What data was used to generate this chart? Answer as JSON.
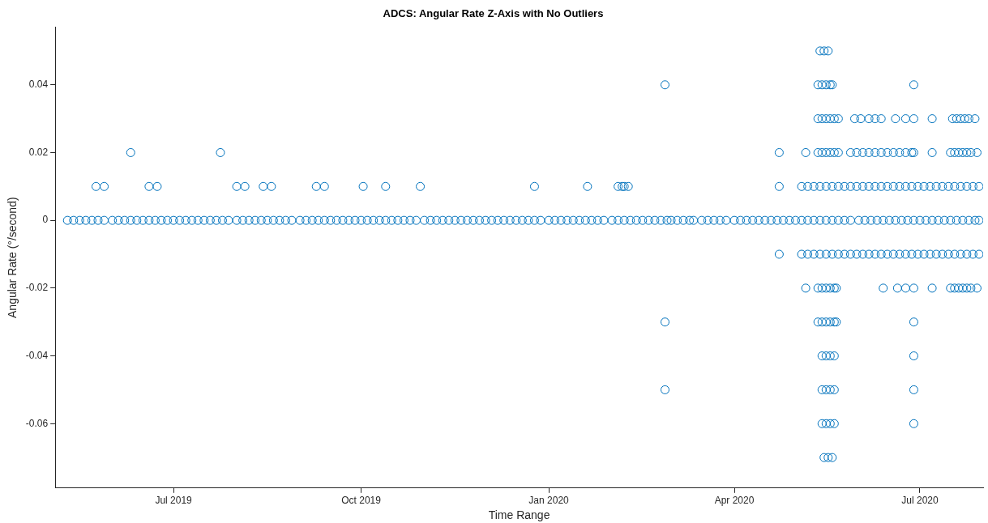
{
  "chart_data": {
    "type": "scatter",
    "title": "ADCS: Angular Rate Z-Axis with No Outliers",
    "xlabel": "Time Range",
    "ylabel": "Angular Rate (°/second)",
    "xlim": [
      "2019-05-04",
      "2020-08-01"
    ],
    "xticks": [
      {
        "value": "2019-07-01",
        "label": "Jul 2019"
      },
      {
        "value": "2019-10-01",
        "label": "Oct 2019"
      },
      {
        "value": "2020-01-01",
        "label": "Jan 2020"
      },
      {
        "value": "2020-04-01",
        "label": "Apr 2020"
      },
      {
        "value": "2020-07-01",
        "label": "Jul 2020"
      }
    ],
    "ylim": [
      -0.079,
      0.057
    ],
    "yticks": [
      -0.06,
      -0.04,
      -0.02,
      0,
      0.02,
      0.04
    ],
    "grid": false,
    "legend": false,
    "marker": "circle",
    "series": [
      {
        "color": "#0072bd",
        "x": [
          "2020-05-13",
          "2020-05-15",
          "2020-05-17"
        ],
        "values": [
          0.05,
          0.05,
          0.05
        ]
      },
      {
        "color": "#0072bd",
        "x": [
          "2020-02-27",
          "2020-05-12",
          "2020-05-14",
          "2020-05-16",
          "2020-05-18",
          "2020-05-19",
          "2020-06-28"
        ],
        "values": [
          0.04,
          0.04,
          0.04,
          0.04,
          0.04,
          0.04,
          0.04
        ]
      },
      {
        "color": "#0072bd",
        "x": [
          "2020-05-12",
          "2020-05-14",
          "2020-05-16",
          "2020-05-18",
          "2020-05-20",
          "2020-05-22",
          "2020-05-30",
          "2020-06-02",
          "2020-06-06",
          "2020-06-09",
          "2020-06-12",
          "2020-06-19",
          "2020-06-24",
          "2020-06-28",
          "2020-07-07",
          "2020-07-17",
          "2020-07-19",
          "2020-07-21",
          "2020-07-23",
          "2020-07-25",
          "2020-07-28"
        ],
        "values": [
          0.03,
          0.03,
          0.03,
          0.03,
          0.03,
          0.03,
          0.03,
          0.03,
          0.03,
          0.03,
          0.03,
          0.03,
          0.03,
          0.03,
          0.03,
          0.03,
          0.03,
          0.03,
          0.03,
          0.03,
          0.03
        ]
      },
      {
        "color": "#0072bd",
        "x": [
          "2019-06-10",
          "2019-07-24",
          "2020-04-23",
          "2020-05-06",
          "2020-05-12",
          "2020-05-14",
          "2020-05-16",
          "2020-05-18",
          "2020-05-20",
          "2020-05-22",
          "2020-05-28",
          "2020-05-31",
          "2020-06-03",
          "2020-06-06",
          "2020-06-09",
          "2020-06-12",
          "2020-06-15",
          "2020-06-18",
          "2020-06-21",
          "2020-06-24",
          "2020-06-27",
          "2020-06-28",
          "2020-07-07",
          "2020-07-16",
          "2020-07-18",
          "2020-07-20",
          "2020-07-22",
          "2020-07-24",
          "2020-07-26",
          "2020-07-29"
        ],
        "values": [
          0.02,
          0.02,
          0.02,
          0.02,
          0.02,
          0.02,
          0.02,
          0.02,
          0.02,
          0.02,
          0.02,
          0.02,
          0.02,
          0.02,
          0.02,
          0.02,
          0.02,
          0.02,
          0.02,
          0.02,
          0.02,
          0.02,
          0.02,
          0.02,
          0.02,
          0.02,
          0.02,
          0.02,
          0.02,
          0.02
        ]
      },
      {
        "color": "#0072bd",
        "x": [
          "2019-05-24",
          "2019-05-28",
          "2019-06-19",
          "2019-06-23",
          "2019-08-01",
          "2019-08-05",
          "2019-08-14",
          "2019-08-18",
          "2019-09-09",
          "2019-09-13",
          "2019-10-02",
          "2019-10-13",
          "2019-10-30",
          "2019-12-25",
          "2020-01-20",
          "2020-02-04",
          "2020-02-06",
          "2020-02-07",
          "2020-02-09",
          "2020-04-23",
          "2020-05-04",
          "2020-05-07",
          "2020-05-10",
          "2020-05-13",
          "2020-05-16",
          "2020-05-19",
          "2020-05-22",
          "2020-05-25",
          "2020-05-28",
          "2020-05-31",
          "2020-06-03",
          "2020-06-06",
          "2020-06-09",
          "2020-06-12",
          "2020-06-15",
          "2020-06-18",
          "2020-06-21",
          "2020-06-24",
          "2020-06-27",
          "2020-06-30",
          "2020-07-03",
          "2020-07-06",
          "2020-07-09",
          "2020-07-12",
          "2020-07-15",
          "2020-07-18",
          "2020-07-21",
          "2020-07-24",
          "2020-07-27",
          "2020-07-30"
        ],
        "values": [
          0.01,
          0.01,
          0.01,
          0.01,
          0.01,
          0.01,
          0.01,
          0.01,
          0.01,
          0.01,
          0.01,
          0.01,
          0.01,
          0.01,
          0.01,
          0.01,
          0.01,
          0.01,
          0.01,
          0.01,
          0.01,
          0.01,
          0.01,
          0.01,
          0.01,
          0.01,
          0.01,
          0.01,
          0.01,
          0.01,
          0.01,
          0.01,
          0.01,
          0.01,
          0.01,
          0.01,
          0.01,
          0.01,
          0.01,
          0.01,
          0.01,
          0.01,
          0.01,
          0.01,
          0.01,
          0.01,
          0.01,
          0.01,
          0.01,
          0.01
        ]
      },
      {
        "color": "#0072bd",
        "x": [
          "2019-05-10",
          "2019-05-13",
          "2019-05-16",
          "2019-05-19",
          "2019-05-22",
          "2019-05-25",
          "2019-05-28",
          "2019-06-01",
          "2019-06-04",
          "2019-06-07",
          "2019-06-10",
          "2019-06-13",
          "2019-06-16",
          "2019-06-19",
          "2019-06-22",
          "2019-06-25",
          "2019-06-28",
          "2019-07-01",
          "2019-07-04",
          "2019-07-07",
          "2019-07-10",
          "2019-07-13",
          "2019-07-16",
          "2019-07-19",
          "2019-07-22",
          "2019-07-25",
          "2019-07-28",
          "2019-08-01",
          "2019-08-04",
          "2019-08-07",
          "2019-08-10",
          "2019-08-13",
          "2019-08-16",
          "2019-08-19",
          "2019-08-22",
          "2019-08-25",
          "2019-08-28",
          "2019-09-01",
          "2019-09-04",
          "2019-09-07",
          "2019-09-10",
          "2019-09-13",
          "2019-09-16",
          "2019-09-19",
          "2019-09-22",
          "2019-09-25",
          "2019-09-28",
          "2019-10-01",
          "2019-10-04",
          "2019-10-07",
          "2019-10-10",
          "2019-10-13",
          "2019-10-16",
          "2019-10-19",
          "2019-10-22",
          "2019-10-25",
          "2019-10-28",
          "2019-11-01",
          "2019-11-04",
          "2019-11-07",
          "2019-11-10",
          "2019-11-13",
          "2019-11-16",
          "2019-11-19",
          "2019-11-22",
          "2019-11-25",
          "2019-11-28",
          "2019-12-01",
          "2019-12-04",
          "2019-12-07",
          "2019-12-10",
          "2019-12-13",
          "2019-12-16",
          "2019-12-19",
          "2019-12-22",
          "2019-12-25",
          "2019-12-28",
          "2020-01-01",
          "2020-01-04",
          "2020-01-07",
          "2020-01-10",
          "2020-01-13",
          "2020-01-16",
          "2020-01-19",
          "2020-01-22",
          "2020-01-25",
          "2020-01-28",
          "2020-02-01",
          "2020-02-04",
          "2020-02-07",
          "2020-02-10",
          "2020-02-13",
          "2020-02-16",
          "2020-02-19",
          "2020-02-22",
          "2020-02-25",
          "2020-02-28",
          "2020-03-01",
          "2020-03-04",
          "2020-03-07",
          "2020-03-10",
          "2020-03-12",
          "2020-03-16",
          "2020-03-19",
          "2020-03-22",
          "2020-03-25",
          "2020-03-28",
          "2020-04-01",
          "2020-04-04",
          "2020-04-07",
          "2020-04-10",
          "2020-04-13",
          "2020-04-16",
          "2020-04-19",
          "2020-04-22",
          "2020-04-25",
          "2020-04-28",
          "2020-05-01",
          "2020-05-04",
          "2020-05-07",
          "2020-05-10",
          "2020-05-13",
          "2020-05-16",
          "2020-05-19",
          "2020-05-22",
          "2020-05-25",
          "2020-05-28",
          "2020-06-01",
          "2020-06-04",
          "2020-06-07",
          "2020-06-10",
          "2020-06-13",
          "2020-06-16",
          "2020-06-19",
          "2020-06-22",
          "2020-06-25",
          "2020-06-28",
          "2020-07-01",
          "2020-07-04",
          "2020-07-07",
          "2020-07-10",
          "2020-07-13",
          "2020-07-16",
          "2020-07-19",
          "2020-07-22",
          "2020-07-25",
          "2020-07-28",
          "2020-07-30"
        ],
        "values": [
          0,
          0,
          0,
          0,
          0,
          0,
          0,
          0,
          0,
          0,
          0,
          0,
          0,
          0,
          0,
          0,
          0,
          0,
          0,
          0,
          0,
          0,
          0,
          0,
          0,
          0,
          0,
          0,
          0,
          0,
          0,
          0,
          0,
          0,
          0,
          0,
          0,
          0,
          0,
          0,
          0,
          0,
          0,
          0,
          0,
          0,
          0,
          0,
          0,
          0,
          0,
          0,
          0,
          0,
          0,
          0,
          0,
          0,
          0,
          0,
          0,
          0,
          0,
          0,
          0,
          0,
          0,
          0,
          0,
          0,
          0,
          0,
          0,
          0,
          0,
          0,
          0,
          0,
          0,
          0,
          0,
          0,
          0,
          0,
          0,
          0,
          0,
          0,
          0,
          0,
          0,
          0,
          0,
          0,
          0,
          0,
          0,
          0,
          0,
          0,
          0,
          0,
          0,
          0,
          0,
          0,
          0,
          0,
          0,
          0,
          0,
          0,
          0,
          0,
          0,
          0,
          0,
          0,
          0,
          0,
          0,
          0,
          0,
          0,
          0,
          0,
          0,
          0,
          0,
          0,
          0,
          0,
          0,
          0,
          0,
          0,
          0,
          0,
          0,
          0,
          0,
          0,
          0,
          0,
          0,
          0,
          0,
          0
        ]
      },
      {
        "color": "#0072bd",
        "x": [
          "2020-04-23",
          "2020-05-04",
          "2020-05-07",
          "2020-05-10",
          "2020-05-13",
          "2020-05-16",
          "2020-05-19",
          "2020-05-22",
          "2020-05-25",
          "2020-05-28",
          "2020-05-31",
          "2020-06-03",
          "2020-06-06",
          "2020-06-09",
          "2020-06-12",
          "2020-06-15",
          "2020-06-18",
          "2020-06-21",
          "2020-06-24",
          "2020-06-27",
          "2020-06-30",
          "2020-07-03",
          "2020-07-06",
          "2020-07-09",
          "2020-07-12",
          "2020-07-15",
          "2020-07-18",
          "2020-07-21",
          "2020-07-24",
          "2020-07-27",
          "2020-07-30"
        ],
        "values": [
          -0.01,
          -0.01,
          -0.01,
          -0.01,
          -0.01,
          -0.01,
          -0.01,
          -0.01,
          -0.01,
          -0.01,
          -0.01,
          -0.01,
          -0.01,
          -0.01,
          -0.01,
          -0.01,
          -0.01,
          -0.01,
          -0.01,
          -0.01,
          -0.01,
          -0.01,
          -0.01,
          -0.01,
          -0.01,
          -0.01,
          -0.01,
          -0.01,
          -0.01,
          -0.01,
          -0.01
        ]
      },
      {
        "color": "#0072bd",
        "x": [
          "2020-05-06",
          "2020-05-12",
          "2020-05-14",
          "2020-05-16",
          "2020-05-18",
          "2020-05-20",
          "2020-05-21",
          "2020-06-13",
          "2020-06-20",
          "2020-06-24",
          "2020-06-28",
          "2020-07-07",
          "2020-07-16",
          "2020-07-18",
          "2020-07-20",
          "2020-07-22",
          "2020-07-24",
          "2020-07-26",
          "2020-07-29"
        ],
        "values": [
          -0.02,
          -0.02,
          -0.02,
          -0.02,
          -0.02,
          -0.02,
          -0.02,
          -0.02,
          -0.02,
          -0.02,
          -0.02,
          -0.02,
          -0.02,
          -0.02,
          -0.02,
          -0.02,
          -0.02,
          -0.02,
          -0.02
        ]
      },
      {
        "color": "#0072bd",
        "x": [
          "2020-02-27",
          "2020-05-12",
          "2020-05-14",
          "2020-05-16",
          "2020-05-18",
          "2020-05-20",
          "2020-05-21",
          "2020-06-28"
        ],
        "values": [
          -0.03,
          -0.03,
          -0.03,
          -0.03,
          -0.03,
          -0.03,
          -0.03,
          -0.03
        ]
      },
      {
        "color": "#0072bd",
        "x": [
          "2020-05-14",
          "2020-05-16",
          "2020-05-18",
          "2020-05-20",
          "2020-06-28"
        ],
        "values": [
          -0.04,
          -0.04,
          -0.04,
          -0.04,
          -0.04
        ]
      },
      {
        "color": "#0072bd",
        "x": [
          "2020-02-27",
          "2020-05-14",
          "2020-05-16",
          "2020-05-18",
          "2020-05-20",
          "2020-06-28"
        ],
        "values": [
          -0.05,
          -0.05,
          -0.05,
          -0.05,
          -0.05,
          -0.05
        ]
      },
      {
        "color": "#0072bd",
        "x": [
          "2020-05-14",
          "2020-05-16",
          "2020-05-18",
          "2020-05-20",
          "2020-06-28"
        ],
        "values": [
          -0.06,
          -0.06,
          -0.06,
          -0.06,
          -0.06
        ]
      },
      {
        "color": "#0072bd",
        "x": [
          "2020-05-15",
          "2020-05-17",
          "2020-05-19"
        ],
        "values": [
          -0.07,
          -0.07,
          -0.07
        ]
      }
    ]
  }
}
